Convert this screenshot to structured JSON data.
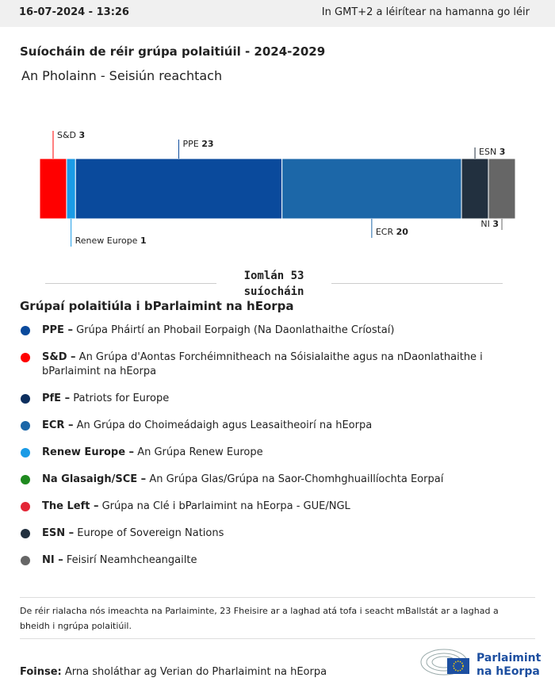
{
  "header": {
    "timestamp": "16-07-2024 - 13:26",
    "timezone_note": "In GMT+2 a léirítear na hamanna go léir"
  },
  "chart_data": {
    "type": "stacked-bar",
    "title": "Suíocháin de réir grúpa polaitiúil - 2024-2029",
    "subtitle": "An Pholainn - Seisiún reachtach",
    "series": [
      {
        "name": "S&D",
        "color": "#ff0000",
        "values": [
          3
        ]
      },
      {
        "name": "Renew Europe",
        "color": "#1a9be6",
        "values": [
          1
        ]
      },
      {
        "name": "PPE",
        "color": "#0a4a9c",
        "values": [
          23
        ]
      },
      {
        "name": "ECR",
        "color": "#1c67a8",
        "values": [
          20
        ]
      },
      {
        "name": "ESN",
        "color": "#22303f",
        "values": [
          3
        ]
      },
      {
        "name": "NI",
        "color": "#666666",
        "values": [
          3
        ]
      }
    ],
    "total_label": "Iomlán",
    "total": 53,
    "total_unit": "suíocháin"
  },
  "legend": {
    "title": "Grúpaí polaitiúla i bParlaimint na hEorpa",
    "items": [
      {
        "abbr": "PPE –",
        "name": "Grúpa Pháirtí an Phobail Eorpaigh (Na Daonlathaithe Críostaí)",
        "color": "#0a4a9c"
      },
      {
        "abbr": "S&D –",
        "name": "An Grúpa d'Aontas Forchéimnitheach na Sóisialaithe agus na nDaonlathaithe i bParlaimint na hEorpa",
        "color": "#ff0000"
      },
      {
        "abbr": "PfE –",
        "name": "Patriots for Europe",
        "color": "#0d2f5e"
      },
      {
        "abbr": "ECR –",
        "name": "An Grúpa do Choimeádaigh agus Leasaitheoirí na hEorpa",
        "color": "#1c67a8"
      },
      {
        "abbr": "Renew Europe –",
        "name": "An Grúpa Renew Europe",
        "color": "#1a9be6"
      },
      {
        "abbr": "Na Glasaigh/SCE –",
        "name": "An Grúpa Glas/Grúpa na Saor-Chomhghuaillíochta Eorpaí",
        "color": "#1f8a1f"
      },
      {
        "abbr": "The Left –",
        "name": "Grúpa na Clé i bParlaimint na hEorpa - GUE/NGL",
        "color": "#e32636"
      },
      {
        "abbr": "ESN –",
        "name": "Europe of Sovereign Nations",
        "color": "#22303f"
      },
      {
        "abbr": "NI –",
        "name": "Feisirí Neamhcheangailte",
        "color": "#666666"
      }
    ]
  },
  "footnote": "De réir rialacha nós imeachta na Parlaiminte, 23 Fheisire ar a laghad atá tofa i seacht mBallstát ar a laghad a bheidh i ngrúpa polaitiúil.",
  "source": {
    "label": "Foinse:",
    "text": "Arna sholáthar ag Verian do Pharlaimint na hEorpa"
  },
  "logo": [
    "Parlaimint",
    "na hEorpa"
  ]
}
